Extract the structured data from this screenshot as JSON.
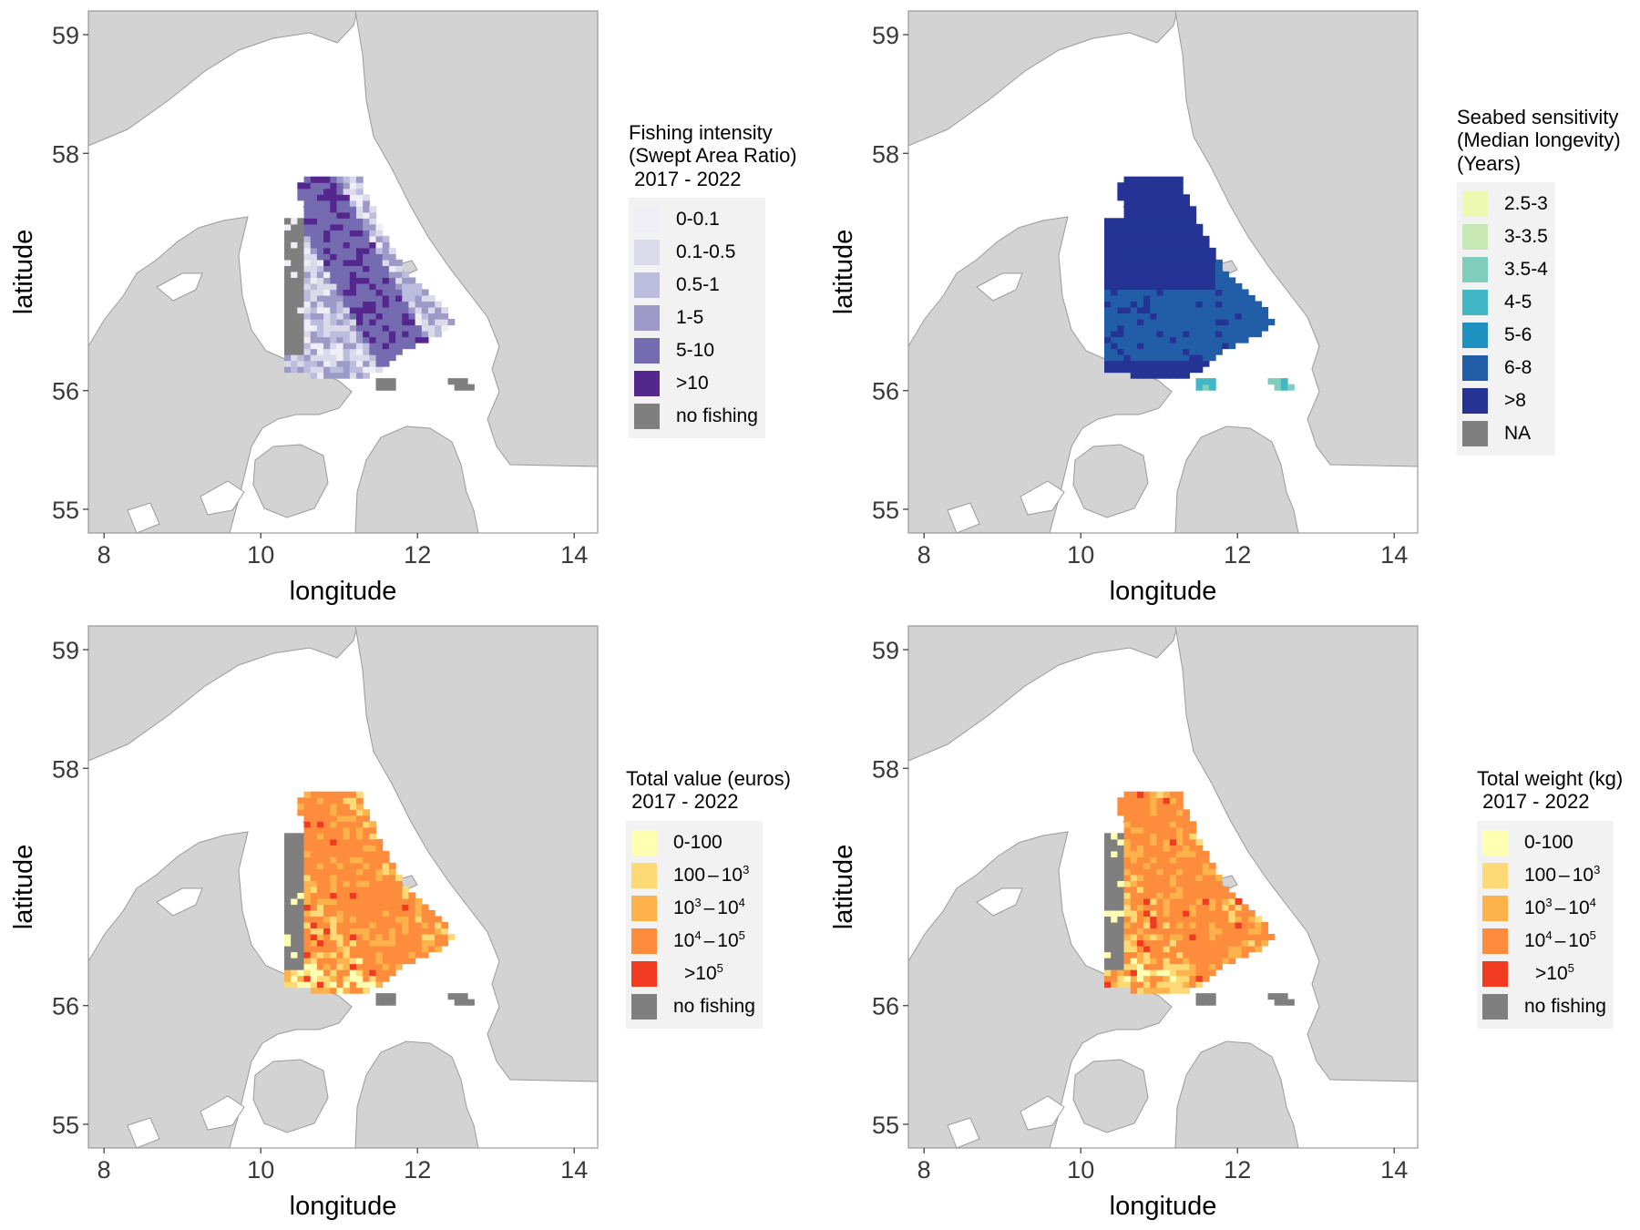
{
  "axes": {
    "xlabel": "longitude",
    "ylabel": "latitude",
    "x_ticks": [
      "8",
      "10",
      "12",
      "14"
    ],
    "y_ticks": [
      "55",
      "56",
      "58",
      "59"
    ],
    "xlim": [
      7.8,
      14.3
    ],
    "ylim": [
      54.8,
      59.2
    ]
  },
  "colors": {
    "land": "#d3d3d3",
    "land_outline": "#9a9a9a",
    "sea": "#ffffff",
    "no_fishing": "#7f7f7f",
    "frame": "#9a9a9a"
  },
  "panels": [
    {
      "id": "fishing-intensity",
      "legend_title": "Fishing intensity\n(Swept Area Ratio)\n 2017 - 2022",
      "legend": [
        {
          "label": "0-0.1",
          "color": "#efedf5"
        },
        {
          "label": "0.1-0.5",
          "color": "#dadaeb"
        },
        {
          "label": "0.5-1",
          "color": "#bcbddc"
        },
        {
          "label": "1-5",
          "color": "#9e9ac8"
        },
        {
          "label": "5-10",
          "color": "#756bb1"
        },
        {
          "label": ">10",
          "color": "#54278f"
        },
        {
          "label": "no fishing",
          "color": "#7f7f7f"
        }
      ]
    },
    {
      "id": "seabed-sensitivity",
      "legend_title": "Seabed sensitivity\n(Median longevity)\n(Years)",
      "legend": [
        {
          "label": "2.5-3",
          "color": "#edf8b1"
        },
        {
          "label": "3-3.5",
          "color": "#c7e9b4"
        },
        {
          "label": "3.5-4",
          "color": "#7fcdbb"
        },
        {
          "label": "4-5",
          "color": "#41b6c4"
        },
        {
          "label": "5-6",
          "color": "#1d91c0"
        },
        {
          "label": "6-8",
          "color": "#225ea8"
        },
        {
          "label": ">8",
          "color": "#253494"
        },
        {
          "label": "NA",
          "color": "#7f7f7f"
        }
      ]
    },
    {
      "id": "total-value",
      "legend_title": "Total value (euros)\n 2017 - 2022",
      "legend": [
        {
          "label": "0-100",
          "color": "#ffffb2"
        },
        {
          "base": "100",
          "b": "10",
          "exp_b": "3",
          "color": "#fed976"
        },
        {
          "a": "10",
          "exp_a": "3",
          "b": "10",
          "exp_b": "4",
          "color": "#feb24c"
        },
        {
          "a": "10",
          "exp_a": "4",
          "b": "10",
          "exp_b": "5",
          "color": "#fd8d3c"
        },
        {
          "gt": ">10",
          "exp_gt": "5",
          "color": "#f03b20"
        },
        {
          "label": "no fishing",
          "color": "#7f7f7f"
        }
      ]
    },
    {
      "id": "total-weight",
      "legend_title": "Total weight (kg)\n 2017 - 2022",
      "legend": [
        {
          "label": "0-100",
          "color": "#ffffb2"
        },
        {
          "base": "100",
          "b": "10",
          "exp_b": "3",
          "color": "#fed976"
        },
        {
          "a": "10",
          "exp_a": "3",
          "b": "10",
          "exp_b": "4",
          "color": "#feb24c"
        },
        {
          "a": "10",
          "exp_a": "4",
          "b": "10",
          "exp_b": "5",
          "color": "#fd8d3c"
        },
        {
          "gt": ">10",
          "exp_gt": "5",
          "color": "#f03b20"
        },
        {
          "label": "no fishing",
          "color": "#7f7f7f"
        }
      ]
    }
  ]
}
